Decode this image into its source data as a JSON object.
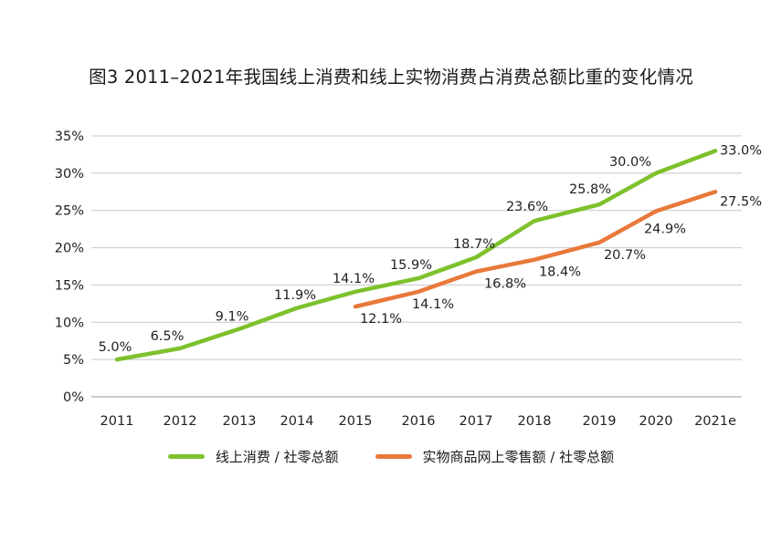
{
  "chart_data": {
    "type": "line",
    "title": "图3 2011–2021年我国线上消费和线上实物消费占消费总额比重的变化情况",
    "categories": [
      "2011",
      "2012",
      "2013",
      "2014",
      "2015",
      "2016",
      "2017",
      "2018",
      "2019",
      "2020",
      "2021e"
    ],
    "ylim": [
      0,
      35
    ],
    "yticks": [
      "0%",
      "5%",
      "10%",
      "15%",
      "20%",
      "25%",
      "30%",
      "35%"
    ],
    "ytick_values": [
      0,
      5,
      10,
      15,
      20,
      25,
      30,
      35
    ],
    "grid": true,
    "legend_position": "bottom",
    "series": [
      {
        "name": "线上消费 / 社零总额",
        "color": "#7dc12c",
        "values": [
          5.0,
          6.5,
          9.1,
          11.9,
          14.1,
          15.9,
          18.7,
          23.6,
          25.8,
          30.0,
          33.0
        ],
        "labels": [
          "5.0%",
          "6.5%",
          "9.1%",
          "11.9%",
          "14.1%",
          "15.9%",
          "18.7%",
          "23.6%",
          "25.8%",
          "30.0%",
          "33.0%"
        ]
      },
      {
        "name": "实物商品网上零售额 / 社零总额",
        "color": "#e8793a",
        "values": [
          null,
          null,
          null,
          null,
          12.1,
          14.1,
          16.8,
          18.4,
          20.7,
          24.9,
          27.5
        ],
        "labels": [
          "",
          "",
          "",
          "",
          "12.1%",
          "14.1%",
          "16.8%",
          "18.4%",
          "20.7%",
          "24.9%",
          "27.5%"
        ]
      }
    ]
  }
}
